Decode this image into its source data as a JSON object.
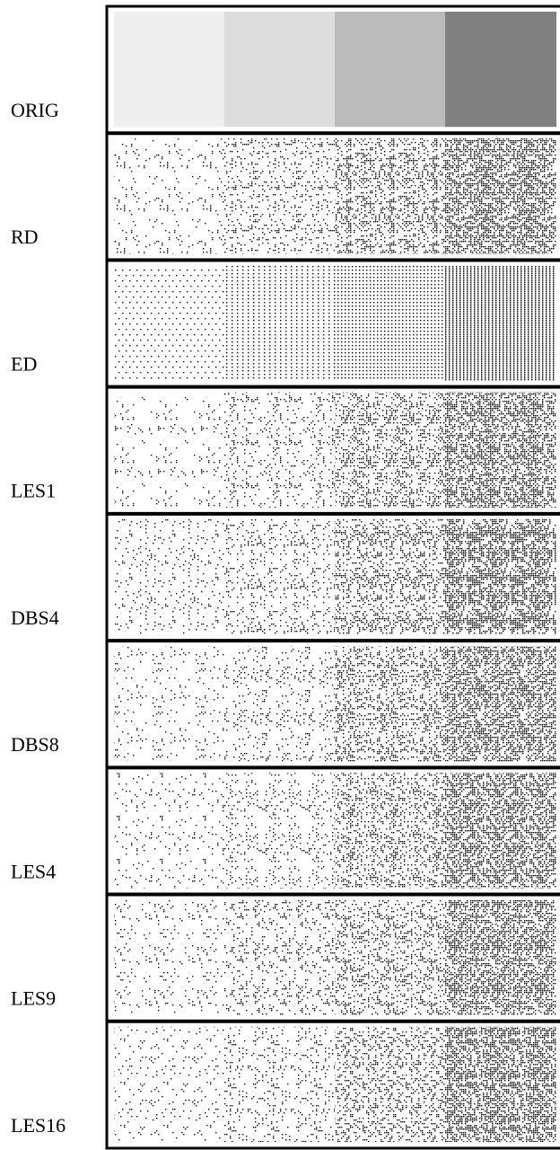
{
  "figure": {
    "rows": [
      {
        "label": "ORIG"
      },
      {
        "label": "RD"
      },
      {
        "label": "ED"
      },
      {
        "label": "LES1"
      },
      {
        "label": "DBS4"
      },
      {
        "label": "DBS8"
      },
      {
        "label": "LES4"
      },
      {
        "label": "LES9"
      },
      {
        "label": "LES16"
      }
    ]
  }
}
